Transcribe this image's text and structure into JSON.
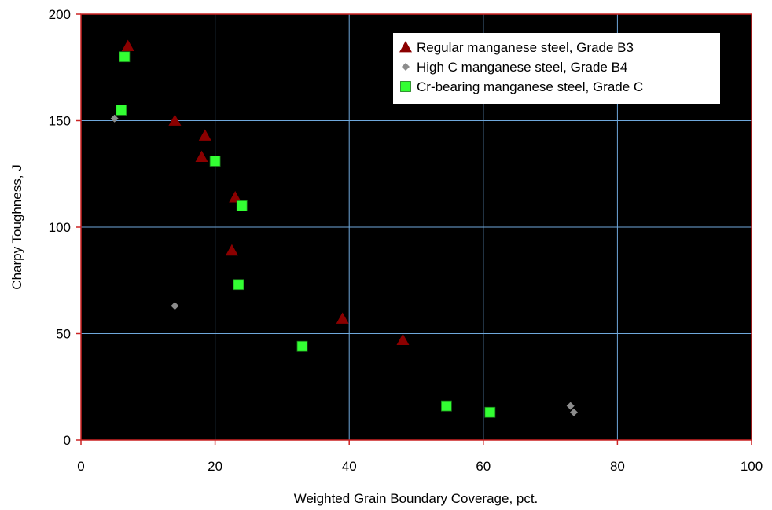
{
  "chart_data": {
    "type": "scatter",
    "title": "",
    "xlabel": "Weighted Grain Boundary Coverage, pct.",
    "ylabel": "Charpy Toughness, J",
    "xlim": [
      0,
      100
    ],
    "ylim": [
      0,
      200
    ],
    "x_ticks": [
      "0",
      "20",
      "40",
      "60",
      "80",
      "100"
    ],
    "y_ticks": [
      "0",
      "50",
      "100",
      "150",
      "200"
    ],
    "grid": true,
    "legend_position": "top-right",
    "colors": {
      "plot_background": "#000000",
      "grid": "#6fa8dc",
      "axis": "#cc2222"
    },
    "series": [
      {
        "name": "Regular manganese steel, Grade B3",
        "marker": "triangle",
        "color": "#8b0000",
        "points": [
          {
            "x": 7,
            "y": 185
          },
          {
            "x": 14,
            "y": 150
          },
          {
            "x": 18.5,
            "y": 143
          },
          {
            "x": 18,
            "y": 133
          },
          {
            "x": 23,
            "y": 114
          },
          {
            "x": 22.5,
            "y": 89
          },
          {
            "x": 39,
            "y": 57
          },
          {
            "x": 48,
            "y": 47
          }
        ]
      },
      {
        "name": "High C manganese steel, Grade B4",
        "marker": "diamond",
        "color": "#8c8c8c",
        "points": [
          {
            "x": 5,
            "y": 151
          },
          {
            "x": 14,
            "y": 63
          },
          {
            "x": 73,
            "y": 16
          },
          {
            "x": 73.5,
            "y": 13
          }
        ]
      },
      {
        "name": "Cr-bearing manganese steel, Grade C",
        "marker": "square",
        "color": "#33ff33",
        "points": [
          {
            "x": 6.5,
            "y": 180
          },
          {
            "x": 6,
            "y": 155
          },
          {
            "x": 20,
            "y": 131
          },
          {
            "x": 24,
            "y": 110
          },
          {
            "x": 23.5,
            "y": 73
          },
          {
            "x": 33,
            "y": 44
          },
          {
            "x": 54.5,
            "y": 16
          },
          {
            "x": 61,
            "y": 13
          }
        ]
      }
    ]
  }
}
